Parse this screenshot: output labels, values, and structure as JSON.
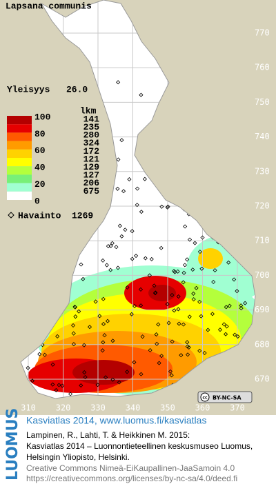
{
  "title": "Lapsana communis",
  "frequency": {
    "label": "Yleisyys",
    "value": "26.0"
  },
  "legend": {
    "scale_labels": [
      100,
      80,
      60,
      40,
      20,
      0
    ],
    "count_header": "lkm",
    "counts": [
      141,
      235,
      280,
      324,
      172,
      121,
      129,
      127,
      206,
      675
    ],
    "colors": [
      "#b40000",
      "#e60000",
      "#ff5a00",
      "#ff9b00",
      "#ffd200",
      "#ffff00",
      "#b4ff3c",
      "#78f078",
      "#a0ffd2",
      "#ffffff"
    ]
  },
  "observation": {
    "label": "Havainto",
    "count": 1269
  },
  "grid": {
    "y_labels": [
      770,
      760,
      750,
      740,
      730,
      720,
      710,
      700,
      690,
      680,
      670
    ],
    "x_labels": [
      310,
      320,
      330,
      340,
      350,
      360,
      370
    ]
  },
  "license_badge": "BY-NC-SA",
  "footer": {
    "logo": "LUOMUS",
    "link_line": "Kasviatlas 2014, www.luomus.fi/kasviatlas",
    "citation": [
      "Lampinen, R., Lahti, T. & Heikkinen M. 2015:",
      "Kasviatlas 2014 – Luonnontieteellinen keskusmuseo Luomus,",
      "Helsingin Yliopisto, Helsinki."
    ],
    "license": [
      "Creative Commons Nimeä-EiKaupallinen-JaaSamoin 4.0",
      "https://creativecommons.org/licenses/by-nc-sa/4.0/deed.fi"
    ]
  }
}
